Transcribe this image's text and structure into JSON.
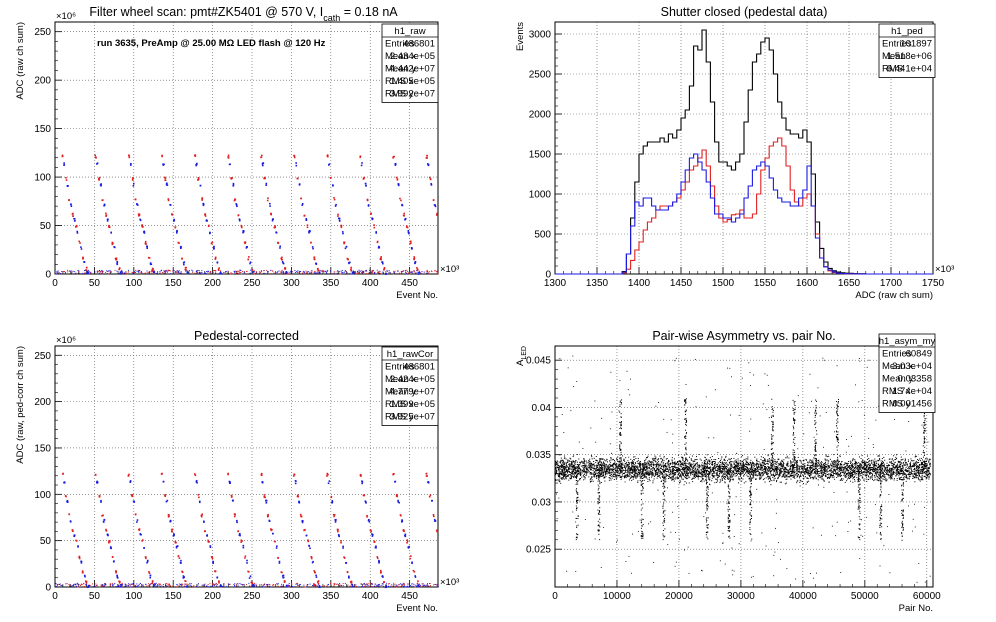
{
  "colors": {
    "red": "#e02020",
    "blue": "#1a1ae0",
    "black": "#000000",
    "grid": "#555555"
  },
  "panels": [
    {
      "id": "raw",
      "title_main": "Filter wheel scan: pmt#ZK5401 @   570 V, I",
      "title_sub": "cath",
      "title_tail": " = 0.18 nA",
      "annotation": "run 3635, PreAmp @ 25.00 MΩ LED flash @  120 Hz",
      "xlabel": "Event No.",
      "ylabel": "ADC (raw ch sum)",
      "x_exponent": "×10³",
      "y_exponent": "×10⁶",
      "stats": {
        "name": "h1_raw",
        "rows": [
          [
            "Entries",
            "486801"
          ],
          [
            "Mean x",
            "2.434e+05"
          ],
          [
            "Mean y",
            "4.442e+07"
          ],
          [
            "RMS x",
            "1.405e+05"
          ],
          [
            "RMS y",
            "3.992e+07"
          ]
        ]
      }
    },
    {
      "id": "ped",
      "title_main": "Shutter closed (pedestal data)",
      "xlabel": "ADC (raw ch sum)",
      "ylabel": "Events",
      "x_exponent": "×10³",
      "stats": {
        "name": "h1_ped",
        "rows": [
          [
            "Entries",
            "101897"
          ],
          [
            "Mean",
            "1.518e+06"
          ],
          [
            "RMS",
            "6.441e+04"
          ]
        ]
      }
    },
    {
      "id": "rawcor",
      "title_main": "Pedestal-corrected",
      "xlabel": "Event No.",
      "ylabel": "ADC (raw, ped-corr ch sum)",
      "x_exponent": "×10³",
      "y_exponent": "×10⁶",
      "stats": {
        "name": "h1_rawCor",
        "rows": [
          [
            "Entries",
            "486801"
          ],
          [
            "Mean x",
            "2.424e+05"
          ],
          [
            "Mean y",
            "4.779e+07"
          ],
          [
            "RMS x",
            "1.399e+05"
          ],
          [
            "RMS y",
            "3.925e+07"
          ]
        ]
      }
    },
    {
      "id": "asym",
      "title_main": "Pair-wise Asymmetry vs. pair No.",
      "xlabel": "Pair No.",
      "ylabel": "A",
      "ylabel_sub": "LED",
      "stats": {
        "name": "h1_asym_my",
        "rows": [
          [
            "Entries",
            "60849"
          ],
          [
            "Mean x",
            "3.03e+04"
          ],
          [
            "Mean y",
            "0.03358"
          ],
          [
            "RMS x",
            "1.74e+04"
          ],
          [
            "RMS y",
            "0.001456"
          ]
        ]
      }
    }
  ],
  "chart_data": [
    {
      "panel": "raw",
      "type": "scatter",
      "title": "Filter wheel scan: pmt#ZK5401 @   570 V, I_cath = 0.18 nA",
      "xlabel": "Event No.",
      "ylabel": "ADC (raw ch sum)",
      "xlim": [
        0,
        486
      ],
      "ylim": [
        0,
        260
      ],
      "x_ticks": [
        0,
        50,
        100,
        150,
        200,
        250,
        300,
        350,
        400,
        450
      ],
      "y_ticks": [
        0,
        50,
        100,
        150,
        200,
        250
      ],
      "grid": true,
      "cycle_period": 42,
      "step_levels": [
        120,
        97,
        75,
        60,
        47,
        30,
        14,
        4
      ],
      "series": [
        {
          "color": "red",
          "step_levels": [
            122,
            99,
            78,
            62,
            50,
            33,
            17,
            6
          ]
        },
        {
          "color": "blue",
          "step_levels": [
            114,
            93,
            72,
            57,
            44,
            28,
            12,
            2
          ]
        }
      ]
    },
    {
      "panel": "ped",
      "type": "line",
      "title": "Shutter closed (pedestal data)",
      "xlabel": "ADC (raw ch sum)",
      "ylabel": "Events",
      "xlim": [
        1300,
        1750
      ],
      "ylim": [
        0,
        3150
      ],
      "x_ticks": [
        1300,
        1350,
        1400,
        1450,
        1500,
        1550,
        1600,
        1650,
        1700,
        1750
      ],
      "y_ticks": [
        0,
        500,
        1000,
        1500,
        2000,
        2500,
        3000
      ],
      "grid": true,
      "bin_width": 5,
      "bin_start": 1380,
      "series": [
        {
          "color": "black",
          "values": [
            30,
            250,
            700,
            1150,
            1500,
            1600,
            1650,
            1650,
            1650,
            1700,
            1650,
            1750,
            1700,
            1800,
            1950,
            2050,
            2350,
            2850,
            2800,
            3050,
            2650,
            2150,
            1650,
            1400,
            1400,
            1350,
            1300,
            1400,
            1500,
            1900,
            2300,
            2650,
            2750,
            2900,
            2950,
            2800,
            2500,
            2150,
            1950,
            1800,
            1750,
            1750,
            1700,
            1800,
            1650,
            1250,
            650,
            320,
            150,
            70,
            40,
            25,
            15,
            10,
            8,
            5,
            3,
            2
          ]
        },
        {
          "color": "red",
          "values": [
            15,
            60,
            170,
            300,
            400,
            550,
            650,
            700,
            800,
            850,
            850,
            850,
            900,
            950,
            1050,
            1150,
            1300,
            1350,
            1450,
            1550,
            1350,
            1100,
            850,
            700,
            650,
            680,
            740,
            750,
            800,
            700,
            700,
            750,
            1000,
            1300,
            1450,
            1600,
            1650,
            1700,
            1600,
            1350,
            1050,
            900,
            850,
            950,
            1000,
            850,
            500,
            200,
            90,
            40,
            20,
            10,
            6,
            4,
            3,
            2,
            1,
            1
          ]
        },
        {
          "color": "blue",
          "values": [
            25,
            250,
            600,
            900,
            850,
            950,
            950,
            850,
            800,
            800,
            800,
            850,
            900,
            1000,
            1150,
            1300,
            1450,
            1500,
            1400,
            1300,
            1150,
            950,
            750,
            750,
            700,
            700,
            650,
            700,
            750,
            950,
            1100,
            1300,
            1350,
            1400,
            1350,
            1200,
            1050,
            950,
            900,
            900,
            850,
            850,
            950,
            1050,
            1350,
            850,
            450,
            200,
            90,
            50,
            25,
            10,
            6,
            4,
            3,
            2,
            1,
            1
          ]
        }
      ]
    },
    {
      "panel": "rawcor",
      "type": "scatter",
      "title": "Pedestal-corrected",
      "xlabel": "Event No.",
      "ylabel": "ADC (raw, ped-corr ch sum)",
      "xlim": [
        0,
        486
      ],
      "ylim": [
        0,
        260
      ],
      "x_ticks": [
        0,
        50,
        100,
        150,
        200,
        250,
        300,
        350,
        400,
        450
      ],
      "y_ticks": [
        0,
        50,
        100,
        150,
        200,
        250
      ],
      "grid": true,
      "cycle_period": 42,
      "series": [
        {
          "color": "red",
          "step_levels": [
            122,
            99,
            78,
            62,
            50,
            33,
            17,
            6
          ]
        },
        {
          "color": "blue",
          "step_levels": [
            114,
            93,
            72,
            57,
            44,
            28,
            12,
            2
          ]
        }
      ]
    },
    {
      "panel": "asym",
      "type": "scatter",
      "title": "Pair-wise Asymmetry vs. pair No.",
      "xlabel": "Pair No.",
      "ylabel": "A_LED",
      "xlim": [
        0,
        61000
      ],
      "ylim": [
        0.021,
        0.0465
      ],
      "x_ticks": [
        0,
        10000,
        20000,
        30000,
        40000,
        50000,
        60000
      ],
      "y_ticks": [
        0.025,
        0.03,
        0.035,
        0.04,
        0.045
      ],
      "grid": true,
      "band_center": 0.0335,
      "band_halfwidth": 0.0009,
      "spike_every": 3500,
      "series": [
        {
          "color": "black"
        }
      ]
    }
  ]
}
